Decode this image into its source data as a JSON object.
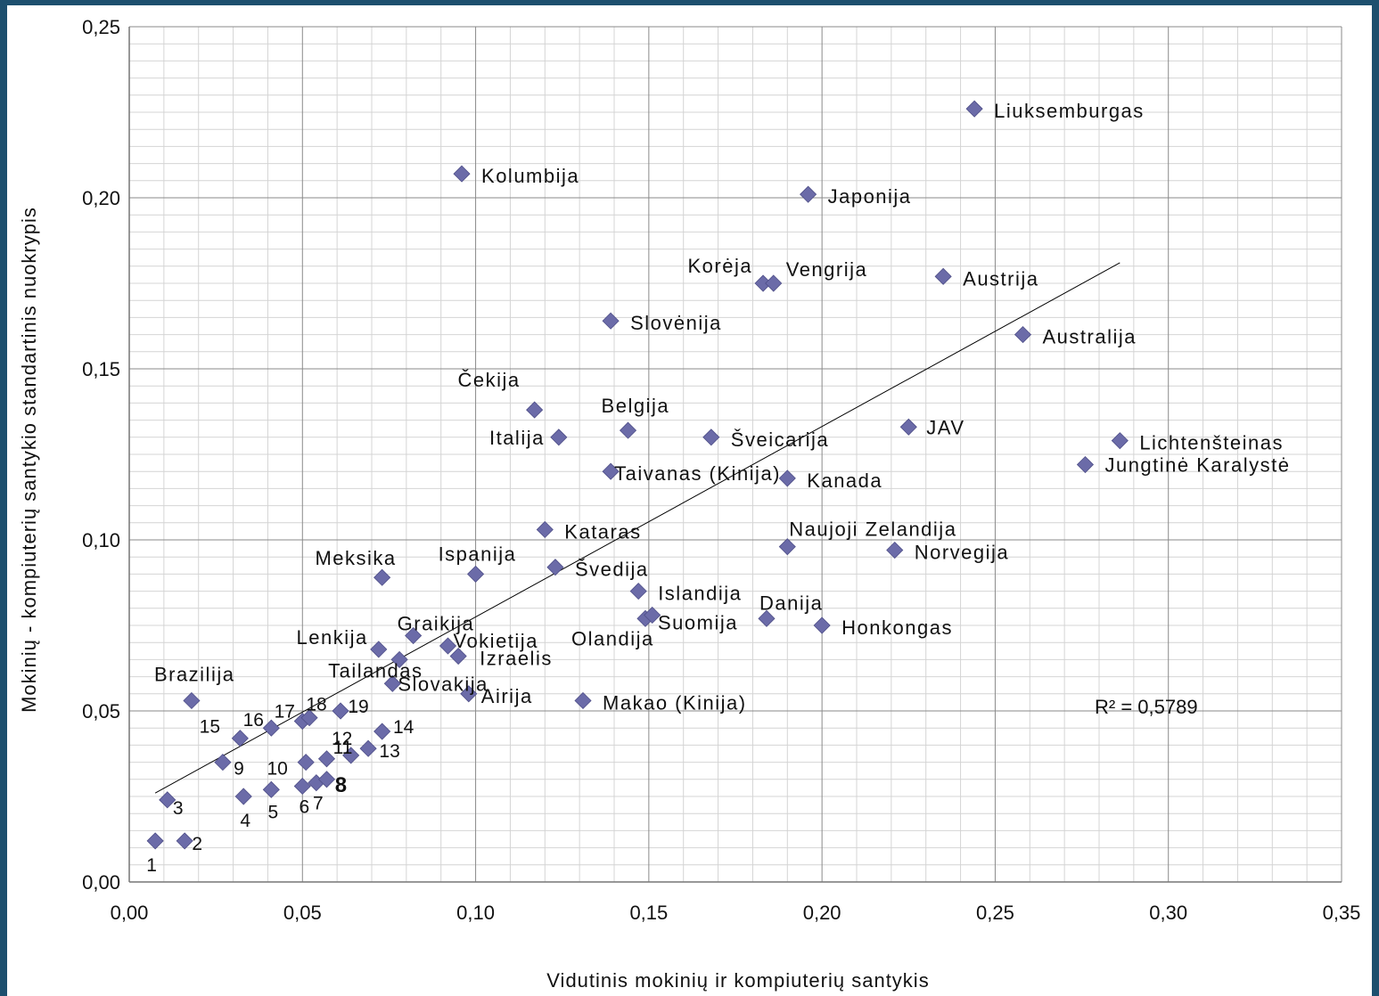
{
  "chart_data": {
    "type": "scatter",
    "xlabel": "Vidutinis mokinių ir kompiuterių santykis",
    "ylabel": "Mokinių - kompiuterių santykio standartinis nuokrypis",
    "xlim": [
      0,
      0.35
    ],
    "ylim": [
      0,
      0.25
    ],
    "x_major_step": 0.05,
    "y_major_step": 0.05,
    "x_tick_labels": [
      "0,00",
      "0,05",
      "0,10",
      "0,15",
      "0,20",
      "0,25",
      "0,30",
      "0,35"
    ],
    "y_tick_labels": [
      "0,00",
      "0,05",
      "0,10",
      "0,15",
      "0,20",
      "0,25"
    ],
    "grid": true,
    "minor_grid": true,
    "marker_color": "#6b6ba8",
    "marker": "diamond",
    "r_squared_label": "R² = 0,5789",
    "trendline": {
      "x": [
        0.0075,
        0.286
      ],
      "y": [
        0.026,
        0.181
      ]
    },
    "points": [
      {
        "label": "Liuksemburgas",
        "x": 0.244,
        "y": 0.226
      },
      {
        "label": "Kolumbija",
        "x": 0.096,
        "y": 0.207
      },
      {
        "label": "Japonija",
        "x": 0.196,
        "y": 0.201
      },
      {
        "label": "Korėja",
        "x": 0.183,
        "y": 0.175
      },
      {
        "label": "Vengrija",
        "x": 0.186,
        "y": 0.175
      },
      {
        "label": "Austrija",
        "x": 0.235,
        "y": 0.177
      },
      {
        "label": "Slovėnija",
        "x": 0.139,
        "y": 0.164
      },
      {
        "label": "Australija",
        "x": 0.258,
        "y": 0.16
      },
      {
        "label": "Čekija",
        "x": 0.117,
        "y": 0.138
      },
      {
        "label": "Italija",
        "x": 0.124,
        "y": 0.13
      },
      {
        "label": "Belgija",
        "x": 0.144,
        "y": 0.132
      },
      {
        "label": "Šveicarija",
        "x": 0.168,
        "y": 0.13
      },
      {
        "label": "JAV",
        "x": 0.225,
        "y": 0.133
      },
      {
        "label": "Lichtenšteinas",
        "x": 0.286,
        "y": 0.129
      },
      {
        "label": "Jungtinė Karalystė",
        "x": 0.276,
        "y": 0.122
      },
      {
        "label": "Taivanas (Kinija)",
        "x": 0.139,
        "y": 0.12
      },
      {
        "label": "Kanada",
        "x": 0.19,
        "y": 0.118
      },
      {
        "label": "Kataras",
        "x": 0.12,
        "y": 0.103
      },
      {
        "label": "Naujoji Zelandija",
        "x": 0.19,
        "y": 0.098
      },
      {
        "label": "Norvegija",
        "x": 0.221,
        "y": 0.097
      },
      {
        "label": "Meksika",
        "x": 0.073,
        "y": 0.089
      },
      {
        "label": "Ispanija",
        "x": 0.1,
        "y": 0.09
      },
      {
        "label": "Švedija",
        "x": 0.123,
        "y": 0.092
      },
      {
        "label": "Islandija",
        "x": 0.147,
        "y": 0.085
      },
      {
        "label": "Danija",
        "x": 0.184,
        "y": 0.077
      },
      {
        "label": "Honkongas",
        "x": 0.2,
        "y": 0.075
      },
      {
        "label": "Suomija",
        "x": 0.149,
        "y": 0.077
      },
      {
        "label": "Olandija",
        "x": 0.151,
        "y": 0.078
      },
      {
        "label": "Graikija",
        "x": 0.082,
        "y": 0.072
      },
      {
        "label": "Lenkija",
        "x": 0.072,
        "y": 0.068
      },
      {
        "label": "Vokietija",
        "x": 0.092,
        "y": 0.069
      },
      {
        "label": "Izraelis",
        "x": 0.095,
        "y": 0.066
      },
      {
        "label": "Tailandas",
        "x": 0.078,
        "y": 0.065
      },
      {
        "label": "Slovakija",
        "x": 0.076,
        "y": 0.058
      },
      {
        "label": "Airija",
        "x": 0.098,
        "y": 0.055
      },
      {
        "label": "Makao (Kinija)",
        "x": 0.131,
        "y": 0.053
      },
      {
        "label": "Brazilija",
        "x": 0.018,
        "y": 0.053
      },
      {
        "label": "1",
        "x": 0.0075,
        "y": 0.012
      },
      {
        "label": "2",
        "x": 0.016,
        "y": 0.012
      },
      {
        "label": "3",
        "x": 0.011,
        "y": 0.024
      },
      {
        "label": "4",
        "x": 0.033,
        "y": 0.025
      },
      {
        "label": "5",
        "x": 0.041,
        "y": 0.027
      },
      {
        "label": "6",
        "x": 0.05,
        "y": 0.028
      },
      {
        "label": "7",
        "x": 0.054,
        "y": 0.029
      },
      {
        "label": "8",
        "x": 0.057,
        "y": 0.03
      },
      {
        "label": "9",
        "x": 0.027,
        "y": 0.035
      },
      {
        "label": "10",
        "x": 0.051,
        "y": 0.035
      },
      {
        "label": "11",
        "x": 0.057,
        "y": 0.036
      },
      {
        "label": "12",
        "x": 0.064,
        "y": 0.037
      },
      {
        "label": "13",
        "x": 0.069,
        "y": 0.039
      },
      {
        "label": "14",
        "x": 0.073,
        "y": 0.044
      },
      {
        "label": "15",
        "x": 0.032,
        "y": 0.042
      },
      {
        "label": "16",
        "x": 0.041,
        "y": 0.045
      },
      {
        "label": "17",
        "x": 0.05,
        "y": 0.047
      },
      {
        "label": "18",
        "x": 0.052,
        "y": 0.048
      },
      {
        "label": "19",
        "x": 0.061,
        "y": 0.05
      }
    ]
  }
}
